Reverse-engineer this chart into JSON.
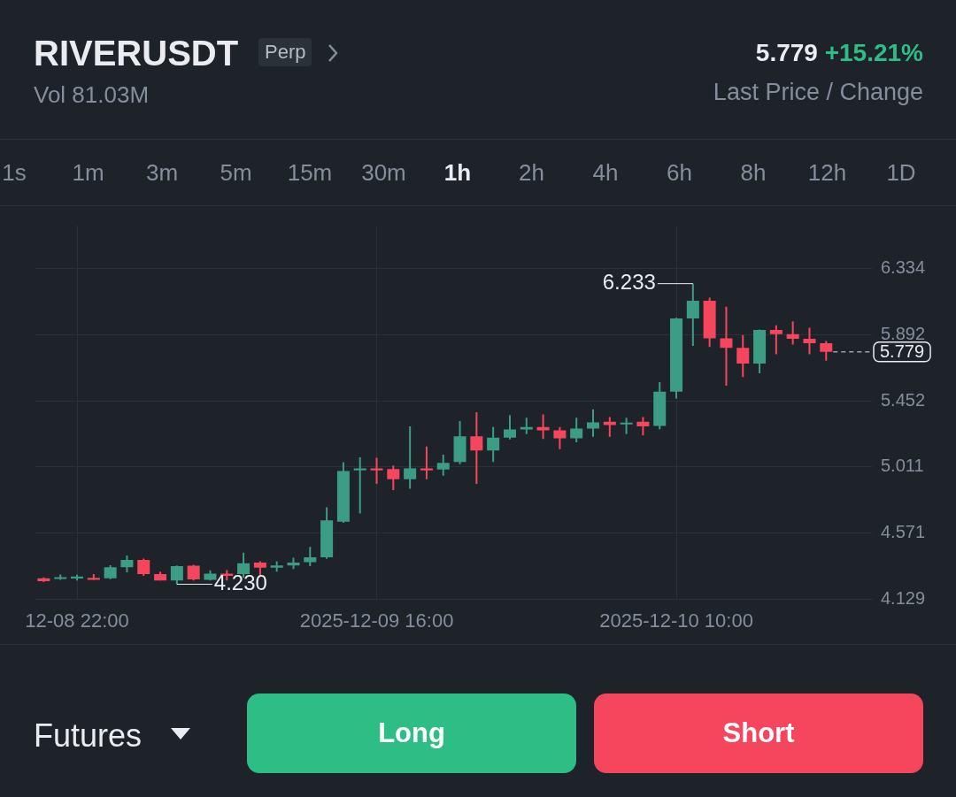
{
  "chart_data": {
    "type": "candlestick",
    "title": "RIVERUSDT",
    "subtitle": "Vol 81.03M",
    "x": [
      "2025-12-08T20:00",
      "2025-12-08T21:00",
      "2025-12-08T22:00",
      "2025-12-08T23:00",
      "2025-12-09T00:00",
      "2025-12-09T01:00",
      "2025-12-09T02:00",
      "2025-12-09T03:00",
      "2025-12-09T04:00",
      "2025-12-09T05:00",
      "2025-12-09T06:00",
      "2025-12-09T07:00",
      "2025-12-09T08:00",
      "2025-12-09T09:00",
      "2025-12-09T10:00",
      "2025-12-09T11:00",
      "2025-12-09T12:00",
      "2025-12-09T13:00",
      "2025-12-09T14:00",
      "2025-12-09T15:00",
      "2025-12-09T16:00",
      "2025-12-09T17:00",
      "2025-12-09T18:00",
      "2025-12-09T19:00",
      "2025-12-09T20:00",
      "2025-12-09T21:00",
      "2025-12-09T22:00",
      "2025-12-09T23:00",
      "2025-12-10T00:00",
      "2025-12-10T01:00",
      "2025-12-10T02:00",
      "2025-12-10T03:00",
      "2025-12-10T04:00",
      "2025-12-10T05:00",
      "2025-12-10T06:00",
      "2025-12-10T07:00",
      "2025-12-10T08:00",
      "2025-12-10T09:00",
      "2025-12-10T10:00",
      "2025-12-10T11:00",
      "2025-12-10T12:00",
      "2025-12-10T13:00",
      "2025-12-10T14:00",
      "2025-12-10T15:00",
      "2025-12-10T16:00",
      "2025-12-10T17:00",
      "2025-12-10T18:00",
      "2025-12-10T19:00"
    ],
    "ohlc": [
      [
        4.27,
        4.275,
        4.245,
        4.251
      ],
      [
        4.266,
        4.295,
        4.259,
        4.277
      ],
      [
        4.268,
        4.293,
        4.255,
        4.282
      ],
      [
        4.273,
        4.297,
        4.259,
        4.259
      ],
      [
        4.27,
        4.357,
        4.264,
        4.343
      ],
      [
        4.343,
        4.421,
        4.31,
        4.392
      ],
      [
        4.392,
        4.401,
        4.286,
        4.297
      ],
      [
        4.297,
        4.314,
        4.255,
        4.255
      ],
      [
        4.255,
        4.355,
        4.23,
        4.35
      ],
      [
        4.354,
        4.36,
        4.255,
        4.262
      ],
      [
        4.259,
        4.322,
        4.255,
        4.3
      ],
      [
        4.3,
        4.324,
        4.255,
        4.286
      ],
      [
        4.297,
        4.441,
        4.274,
        4.37
      ],
      [
        4.374,
        4.383,
        4.286,
        4.341
      ],
      [
        4.341,
        4.383,
        4.314,
        4.355
      ],
      [
        4.355,
        4.406,
        4.331,
        4.374
      ],
      [
        4.377,
        4.479,
        4.35,
        4.41
      ],
      [
        4.41,
        4.742,
        4.4,
        4.656
      ],
      [
        4.647,
        5.043,
        4.64,
        4.984
      ],
      [
        4.988,
        5.076,
        4.702,
        5.002
      ],
      [
        5.002,
        5.072,
        4.899,
        4.988
      ],
      [
        4.997,
        5.021,
        4.857,
        4.93
      ],
      [
        4.93,
        5.282,
        4.866,
        5.002
      ],
      [
        5.002,
        5.148,
        4.93,
        4.988
      ],
      [
        4.994,
        5.094,
        4.954,
        5.039
      ],
      [
        5.045,
        5.318,
        5.03,
        5.216
      ],
      [
        5.216,
        5.377,
        4.899,
        5.121
      ],
      [
        5.121,
        5.277,
        5.045,
        5.207
      ],
      [
        5.207,
        5.355,
        5.195,
        5.262
      ],
      [
        5.262,
        5.34,
        5.231,
        5.277
      ],
      [
        5.277,
        5.362,
        5.198,
        5.255
      ],
      [
        5.255,
        5.277,
        5.13,
        5.203
      ],
      [
        5.203,
        5.34,
        5.176,
        5.267
      ],
      [
        5.267,
        5.395,
        5.213,
        5.309
      ],
      [
        5.313,
        5.344,
        5.213,
        5.291
      ],
      [
        5.295,
        5.34,
        5.231,
        5.307
      ],
      [
        5.313,
        5.344,
        5.222,
        5.282
      ],
      [
        5.285,
        5.577,
        5.263,
        5.513
      ],
      [
        5.513,
        6.005,
        5.468,
        6.001
      ],
      [
        6.001,
        6.233,
        5.818,
        6.119
      ],
      [
        6.119,
        6.139,
        5.811,
        5.869
      ],
      [
        5.869,
        6.079,
        5.553,
        5.805
      ],
      [
        5.805,
        5.89,
        5.61,
        5.701
      ],
      [
        5.701,
        5.928,
        5.635,
        5.924
      ],
      [
        5.924,
        5.956,
        5.763,
        5.897
      ],
      [
        5.897,
        5.982,
        5.827,
        5.866
      ],
      [
        5.866,
        5.939,
        5.763,
        5.836
      ],
      [
        5.836,
        5.851,
        5.72,
        5.779
      ]
    ],
    "colors": [
      "#f6465d",
      "#3d9d84",
      "#3d9d84",
      "#f6465d",
      "#3d9d84",
      "#3d9d84",
      "#f6465d",
      "#f6465d",
      "#3d9d84",
      "#f6465d",
      "#3d9d84",
      "#f6465d",
      "#3d9d84",
      "#f6465d",
      "#3d9d84",
      "#3d9d84",
      "#3d9d84",
      "#3d9d84",
      "#3d9d84",
      "#3d9d84",
      "#f6465d",
      "#f6465d",
      "#3d9d84",
      "#f6465d",
      "#3d9d84",
      "#3d9d84",
      "#f6465d",
      "#3d9d84",
      "#3d9d84",
      "#3d9d84",
      "#f6465d",
      "#f6465d",
      "#3d9d84",
      "#3d9d84",
      "#f6465d",
      "#3d9d84",
      "#f6465d",
      "#3d9d84",
      "#3d9d84",
      "#3d9d84",
      "#f6465d",
      "#f6465d",
      "#f6465d",
      "#3d9d84",
      "#f6465d",
      "#f6465d",
      "#f6465d",
      "#f6465d"
    ],
    "xlim": [
      "2025-12-08T19:30",
      "2025-12-10T21:45"
    ],
    "xticks": [
      {
        "value": "2025-12-08T22:00",
        "label": "12-08 22:00"
      },
      {
        "value": "2025-12-09T16:00",
        "label": "2025-12-09 16:00"
      },
      {
        "value": "2025-12-10T10:00",
        "label": "2025-12-10 10:00"
      }
    ],
    "ylim": [
      4.129,
      6.62
    ],
    "yticks": [
      4.129,
      4.571,
      5.011,
      5.452,
      5.892,
      6.334
    ],
    "grid": true,
    "ref_lines": [
      {
        "axis": "y",
        "value": 5.779,
        "label": "5.779",
        "line_style": "dashed",
        "color": "#9aa0a8"
      }
    ],
    "annotations": [
      "Perp",
      "5.779",
      "+15.21%",
      "Last Price / Change",
      "1s",
      "1m",
      "3m",
      "5m",
      "15m",
      "30m",
      "1h",
      "2h",
      "4h",
      "6h",
      "8h",
      "12h",
      "1D",
      "Futures",
      "Long",
      "Short",
      {
        "text": "6.233",
        "x": "2025-12-10T11:00",
        "y": 6.233
      },
      {
        "text": "4.230",
        "x": "2025-12-09T04:00",
        "y": 4.23
      }
    ]
  }
}
